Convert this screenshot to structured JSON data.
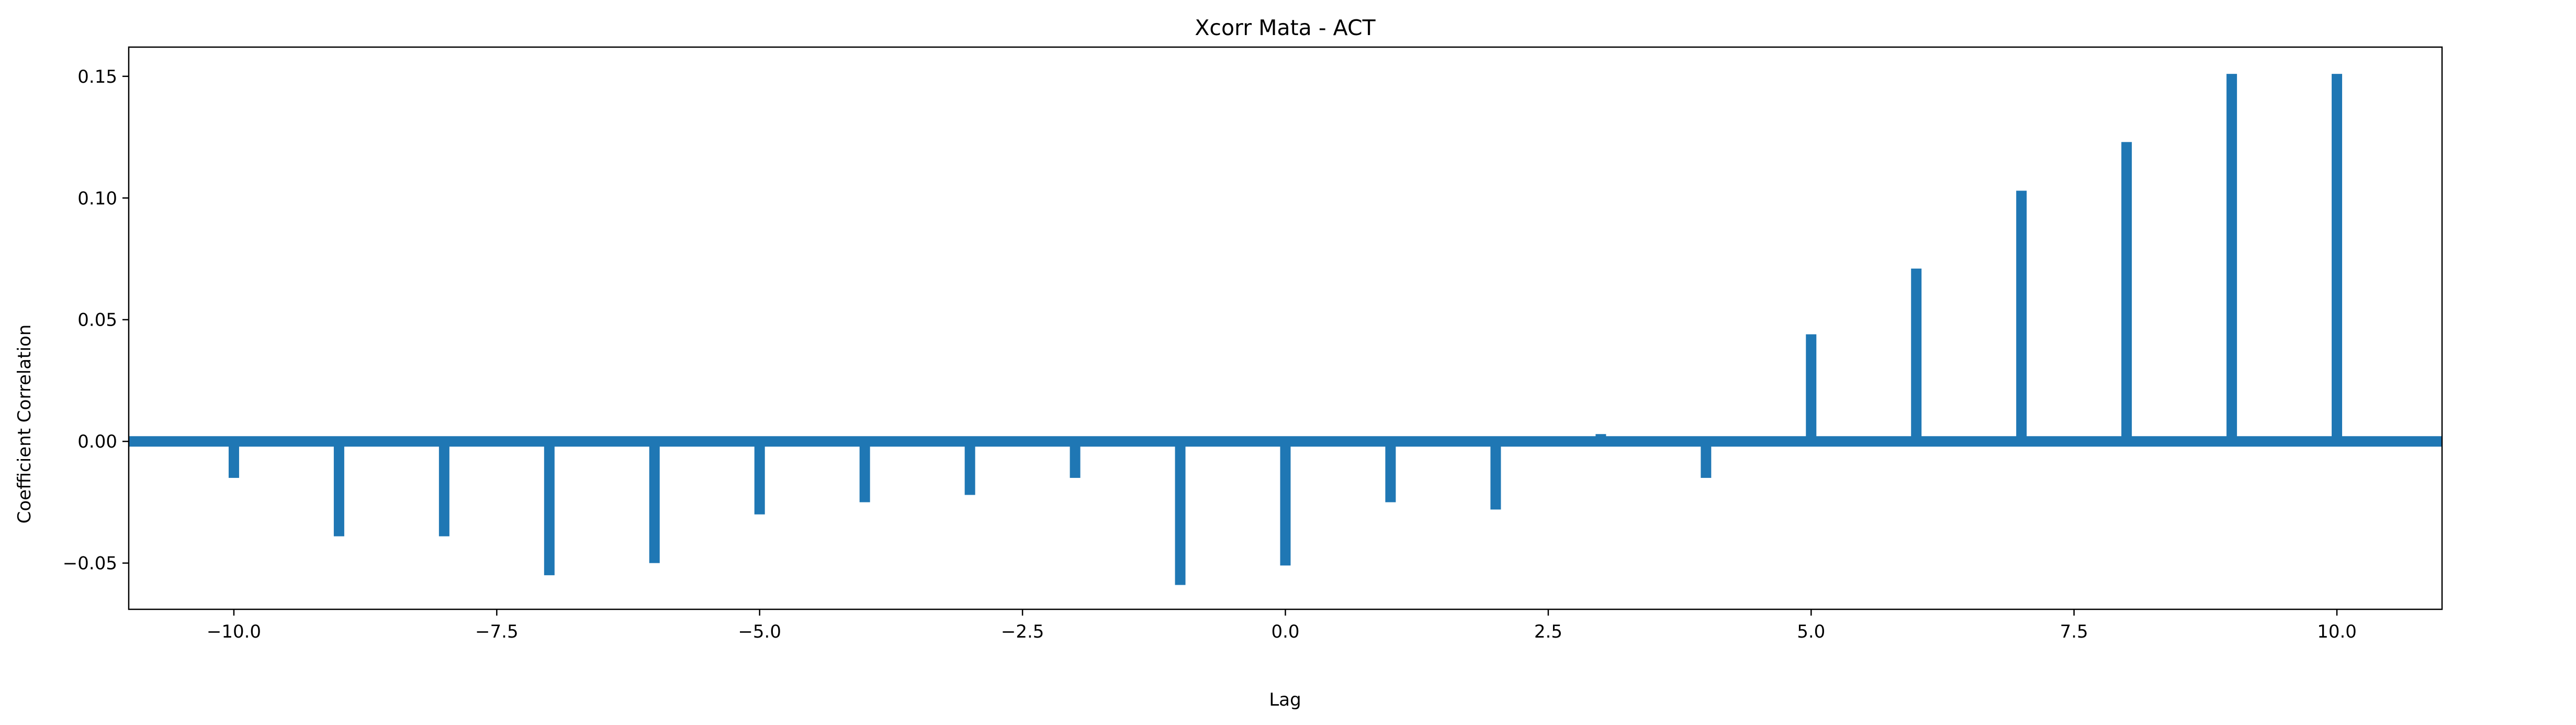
{
  "chart_data": {
    "type": "bar",
    "title": "Xcorr Mata - ACT",
    "xlabel": "Lag",
    "ylabel": "Coefficient Correlation",
    "xlim": [
      -11,
      11
    ],
    "ylim": [
      -0.069,
      0.162
    ],
    "grid": false,
    "xticks": [
      -10.0,
      -7.5,
      -5.0,
      -2.5,
      0.0,
      2.5,
      5.0,
      7.5,
      10.0
    ],
    "xtick_labels": [
      "−10.0",
      "−7.5",
      "−5.0",
      "−2.5",
      "0.0",
      "2.5",
      "5.0",
      "7.5",
      "10.0"
    ],
    "yticks": [
      -0.05,
      0.0,
      0.05,
      0.1,
      0.15
    ],
    "ytick_labels": [
      "−0.05",
      "0.00",
      "0.05",
      "0.10",
      "0.15"
    ],
    "series_color": "#1f77b4",
    "zero_line": 0.0,
    "x": [
      -10,
      -9,
      -8,
      -7,
      -6,
      -5,
      -4,
      -3,
      -2,
      -1,
      0,
      1,
      2,
      3,
      4,
      5,
      6,
      7,
      8,
      9,
      10
    ],
    "values": [
      -0.015,
      -0.039,
      -0.039,
      -0.055,
      -0.05,
      -0.03,
      -0.025,
      -0.022,
      -0.015,
      -0.059,
      -0.051,
      -0.025,
      -0.028,
      0.003,
      -0.015,
      0.044,
      0.071,
      0.103,
      0.123,
      0.151,
      0.151
    ]
  }
}
